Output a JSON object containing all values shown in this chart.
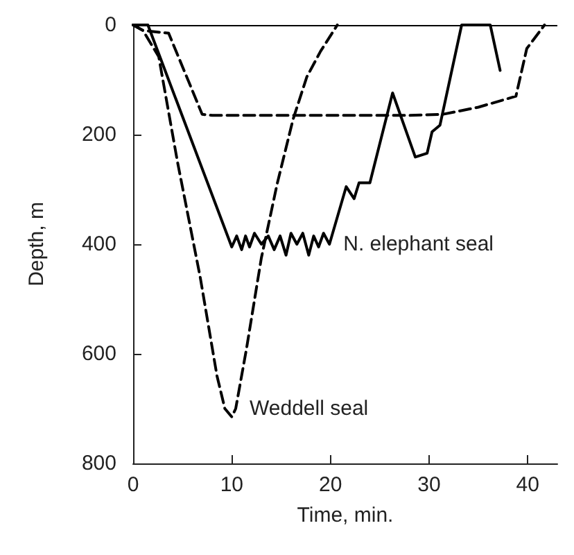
{
  "chart_data": {
    "type": "line",
    "xlabel": "Time, min.",
    "ylabel": "Depth, m",
    "xlim": [
      0,
      43
    ],
    "ylim": [
      800,
      0
    ],
    "xticks": [
      0,
      10,
      20,
      30,
      40
    ],
    "yticks": [
      0,
      200,
      400,
      600,
      800
    ],
    "grid": false,
    "marker": "none",
    "series": [
      {
        "name": "N. elephant seal",
        "color": "#000000",
        "line_style": "solid",
        "x": [
          0,
          1.5,
          10,
          10.5,
          11,
          11.4,
          11.8,
          12.3,
          13,
          13.7,
          14.3,
          14.9,
          15.5,
          16,
          16.6,
          17.2,
          17.8,
          18.3,
          18.8,
          19.3,
          19.9,
          21.6,
          22.4,
          22.9,
          24,
          26.3,
          28.6,
          29.8,
          30.3,
          31.1,
          33.3,
          36.2,
          37.2
        ],
        "values": [
          0,
          0,
          405,
          385,
          410,
          385,
          405,
          380,
          400,
          385,
          410,
          385,
          420,
          380,
          400,
          380,
          420,
          385,
          405,
          380,
          400,
          295,
          317,
          288,
          288,
          124,
          241,
          234,
          195,
          183,
          0,
          0,
          83
        ]
      },
      {
        "name": "Weddell seal",
        "color": "#000000",
        "line_style": "dashed",
        "x": [
          0,
          1,
          2.6,
          4.5,
          6.8,
          8.5,
          9.3,
          10,
          10.4,
          11.5,
          13,
          14.6,
          16.2,
          17.6,
          19,
          20.7
        ],
        "values": [
          0,
          10,
          58,
          250,
          460,
          640,
          700,
          715,
          700,
          590,
          425,
          290,
          173,
          95,
          48,
          0
        ]
      },
      {
        "color": "#000000",
        "line_style": "dashed",
        "x": [
          0,
          1,
          3.6,
          5.9,
          7,
          8,
          15,
          22,
          28,
          31.4,
          35,
          38.8,
          39.9,
          41.7
        ],
        "values": [
          0,
          10,
          15,
          115,
          163,
          165,
          165,
          165,
          165,
          163,
          150,
          130,
          43,
          0
        ]
      }
    ],
    "ref_lines": [
      {
        "axis": "y",
        "value": 0
      }
    ]
  }
}
